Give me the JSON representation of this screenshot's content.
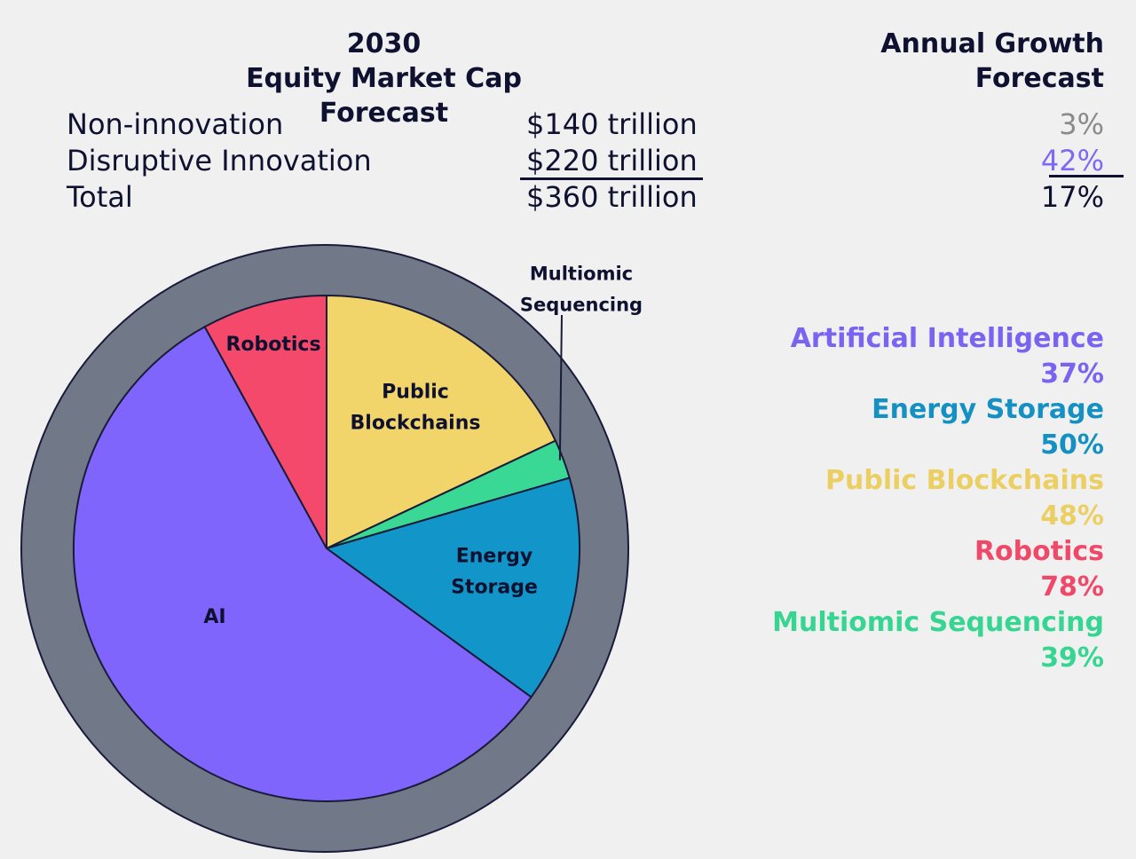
{
  "header": {
    "title_line1": "2030",
    "title_line2": "Equity Market Cap Forecast",
    "growth_title_line1": "Annual Growth",
    "growth_title_line2": "Forecast"
  },
  "forecast_table": [
    {
      "label": "Non-innovation",
      "value": "$140 trillion",
      "growth": "3%",
      "growth_color": "#8a8a8a"
    },
    {
      "label": "Disruptive Innovation",
      "value": "$220 trillion",
      "growth": "42%",
      "growth_color": "#8068f4"
    },
    {
      "label": "Total",
      "value": "$360 trillion",
      "growth": "17%",
      "growth_color": "#0f1130"
    }
  ],
  "legend": [
    {
      "name": "Artificial Intelligence",
      "growth": "37%",
      "color": "#7b63f2"
    },
    {
      "name": "Energy Storage",
      "growth": "50%",
      "color": "#1590c2"
    },
    {
      "name": "Public Blockchains",
      "growth": "48%",
      "color": "#eccf62"
    },
    {
      "name": "Robotics",
      "growth": "78%",
      "color": "#f04868"
    },
    {
      "name": "Multiomic Sequencing",
      "growth": "39%",
      "color": "#36d591"
    }
  ],
  "chart_data": {
    "type": "pie",
    "title": "",
    "outer_ring_color": "#717888",
    "start": "top, clockwise",
    "slices": [
      {
        "label": "Public Blockchains",
        "label_lines": [
          "Public",
          "Blockchains"
        ],
        "value": 18,
        "color": "#f1d46a"
      },
      {
        "label": "Multiomic Sequencing",
        "label_lines": [
          "Multiomic",
          "Sequencing"
        ],
        "value": 2.5,
        "color": "#3ad895",
        "label_outside": true
      },
      {
        "label": "Energy Storage",
        "label_lines": [
          "Energy",
          "Storage"
        ],
        "value": 14.5,
        "color": "#1295c9"
      },
      {
        "label": "AI",
        "label_lines": [
          "AI"
        ],
        "value": 57,
        "color": "#7f65fc"
      },
      {
        "label": "Robotics",
        "label_lines": [
          "Robotics"
        ],
        "value": 8,
        "color": "#f4496b"
      }
    ]
  }
}
